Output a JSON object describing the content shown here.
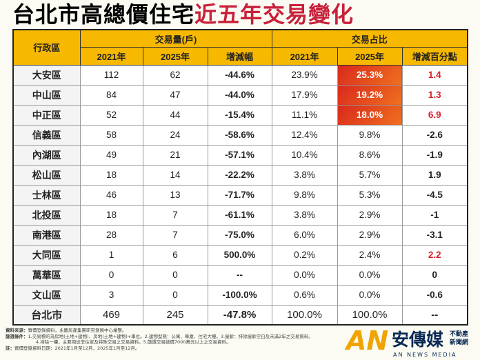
{
  "title": {
    "part1": "台北市高總價住宅",
    "part2": "近五年交易變化"
  },
  "header": {
    "district": "行政區",
    "volume": "交易量(戶)",
    "share": "交易占比",
    "y2021": "2021年",
    "y2025": "2025年",
    "change": "增減幅",
    "pp_change": "增減百分點"
  },
  "rows": [
    [
      "大安區",
      "112",
      "62",
      "-44.6%",
      "23.9%",
      "25.3%",
      "1.4"
    ],
    [
      "中山區",
      "84",
      "47",
      "-44.0%",
      "17.9%",
      "19.2%",
      "1.3"
    ],
    [
      "中正區",
      "52",
      "44",
      "-15.4%",
      "11.1%",
      "18.0%",
      "6.9"
    ],
    [
      "信義區",
      "58",
      "24",
      "-58.6%",
      "12.4%",
      "9.8%",
      "-2.6"
    ],
    [
      "內湖區",
      "49",
      "21",
      "-57.1%",
      "10.4%",
      "8.6%",
      "-1.9"
    ],
    [
      "松山區",
      "18",
      "14",
      "-22.2%",
      "3.8%",
      "5.7%",
      "1.9"
    ],
    [
      "士林區",
      "46",
      "13",
      "-71.7%",
      "9.8%",
      "5.3%",
      "-4.5"
    ],
    [
      "北投區",
      "18",
      "7",
      "-61.1%",
      "3.8%",
      "2.9%",
      "-1"
    ],
    [
      "南港區",
      "28",
      "7",
      "-75.0%",
      "6.0%",
      "2.9%",
      "-3.1"
    ],
    [
      "大同區",
      "1",
      "6",
      "500.0%",
      "0.2%",
      "2.4%",
      "2.2"
    ],
    [
      "萬華區",
      "0",
      "0",
      "--",
      "0.0%",
      "0.0%",
      "0"
    ],
    [
      "文山區",
      "3",
      "0",
      "-100.0%",
      "0.6%",
      "0.0%",
      "-0.6"
    ],
    [
      "台北市",
      "469",
      "245",
      "-47.8%",
      "100.0%",
      "100.0%",
      "--"
    ]
  ],
  "highlight_color": "#e0401e",
  "positive_color": "#d8202a",
  "notes": {
    "source_label": "資料來源：",
    "source": "實價登錄資料，永慶房產集團研究發展中心彙整。",
    "filter_label": "篩選條件：",
    "filter1": "1.交易標的為房地(土地+建物)、房地(土地+建物)+車位。2.建物型態：公寓、華廈、住宅大樓。3.屋齡：排除屋齡空白及未滿2年之交易資料。",
    "filter2": "4.排除一樓，主要用途非住家及特殊交易之交易資料。5.篩選交易總價7000萬元以上之交易資料。",
    "note_label": "註：",
    "note": "實價登錄資料日期：2021年1月至12月，2025年1月至12月。"
  },
  "logo": {
    "name": "安傳媒",
    "sub": "不動產新聞網",
    "en": "AN NEWS MEDIA"
  }
}
